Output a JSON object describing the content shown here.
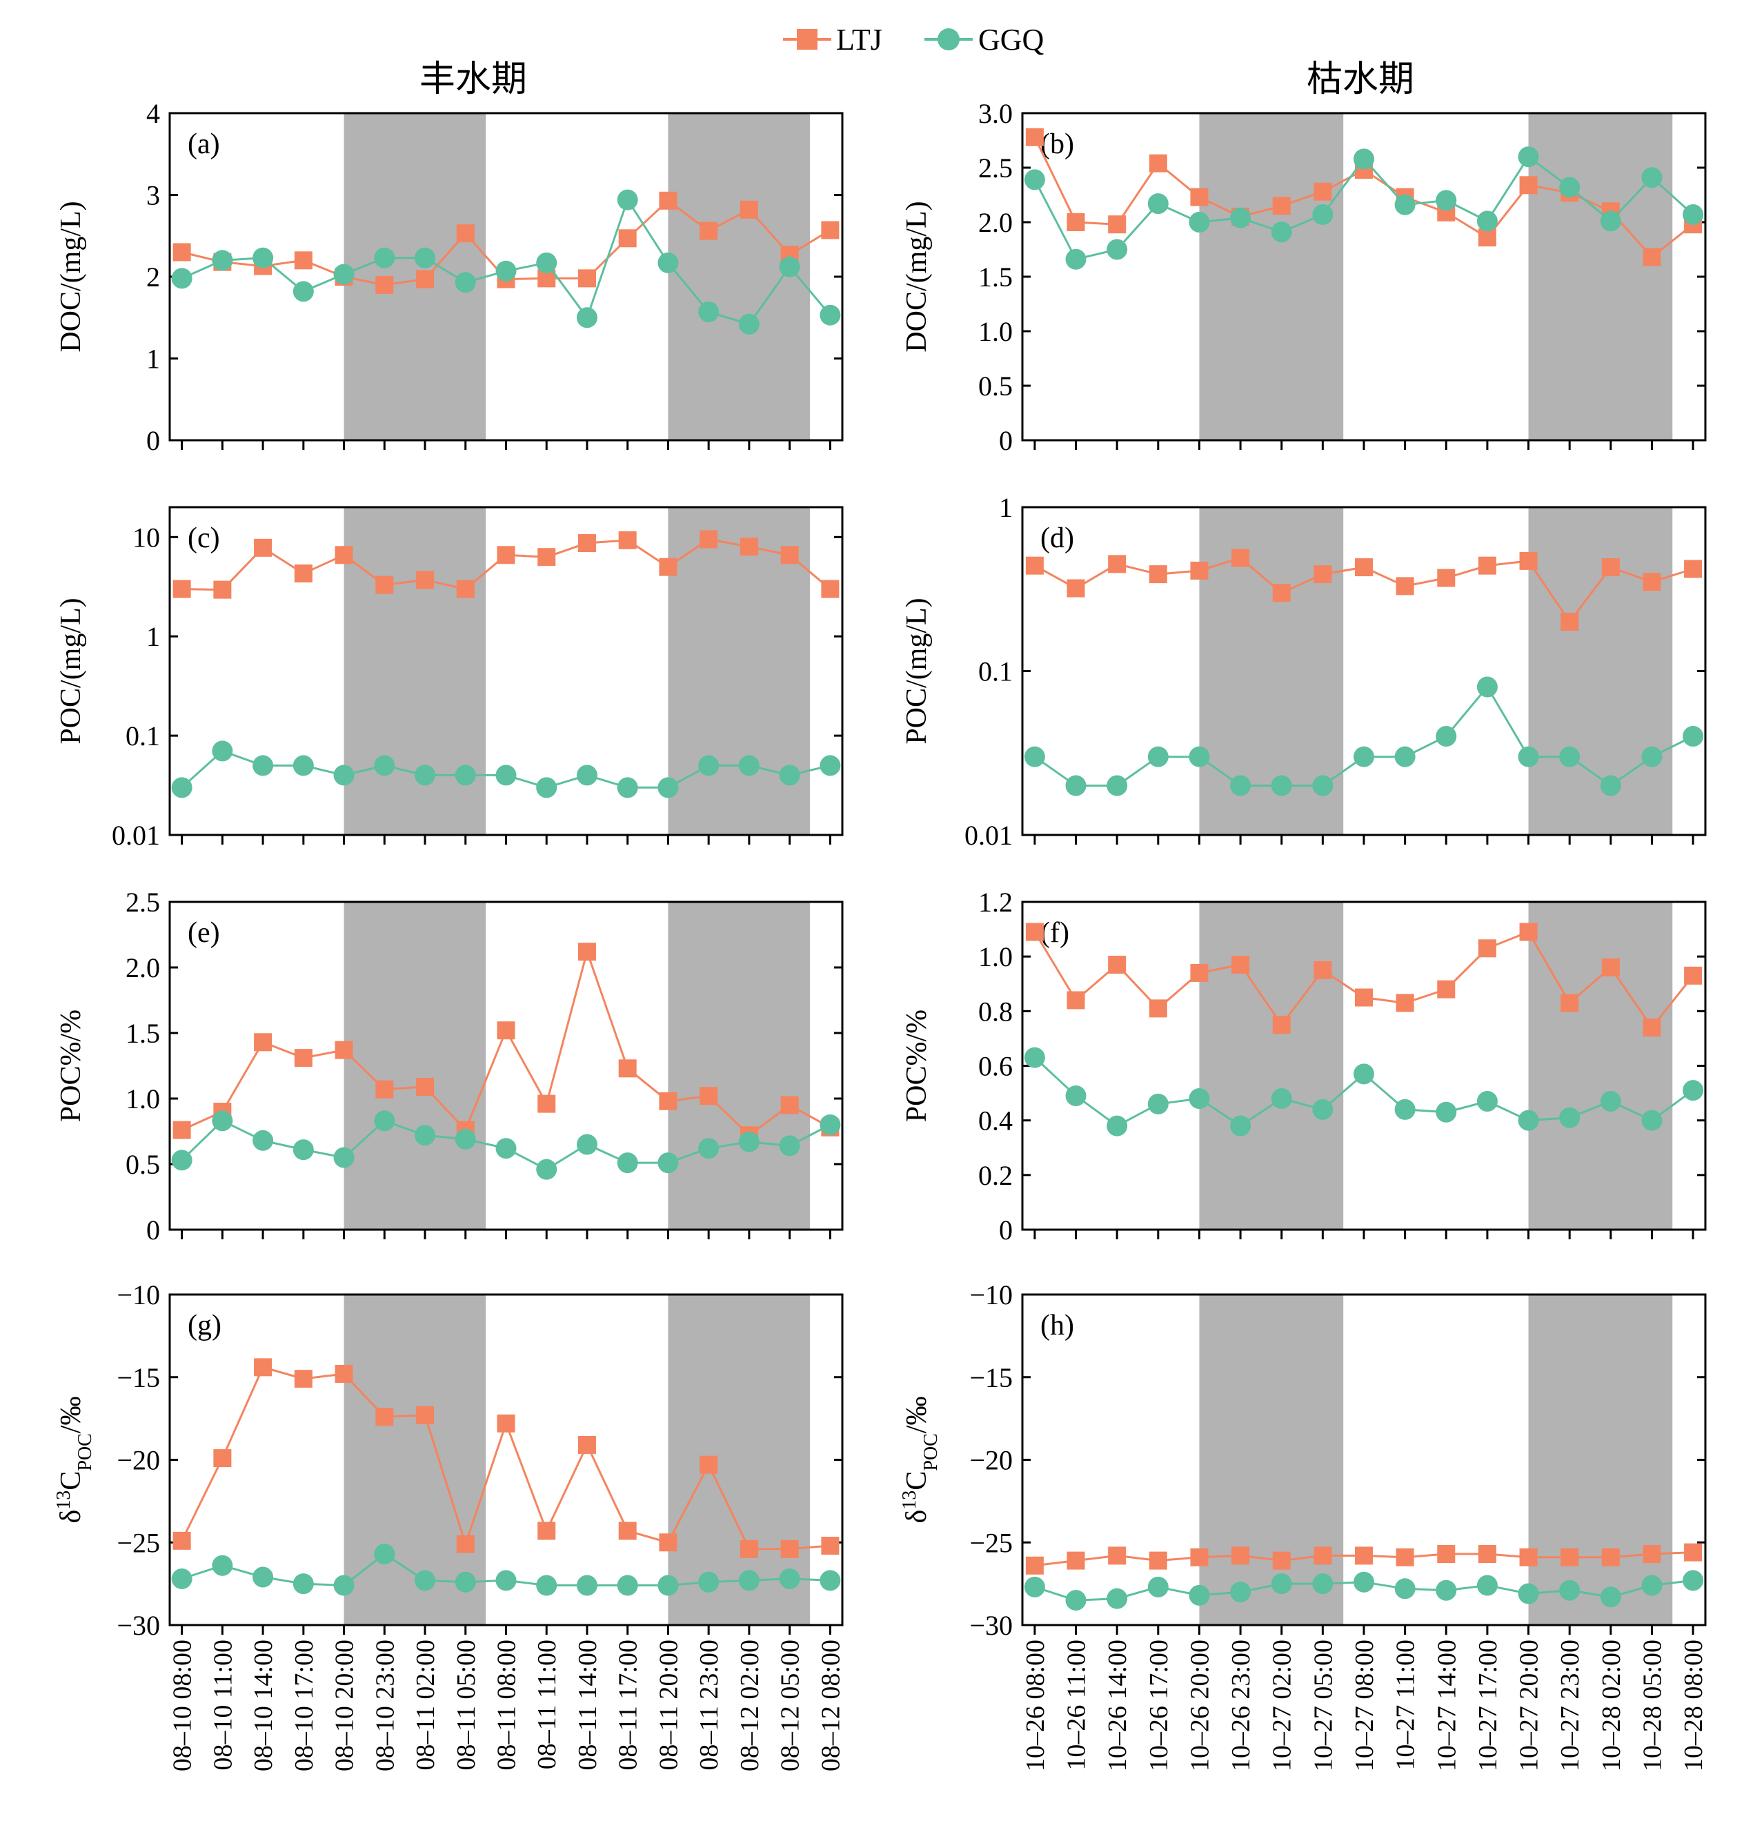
{
  "legend": {
    "ltj_label": "LTJ",
    "ggq_label": "GGQ"
  },
  "column_titles": {
    "left": "丰水期",
    "right": "枯水期"
  },
  "colors": {
    "ltj": "#f4845f",
    "ggq": "#5cbf9f",
    "shade": "#b3b3b3"
  },
  "x_ticks_left": [
    "08–10 08:00",
    "08–10 11:00",
    "08–10 14:00",
    "08–10 17:00",
    "08–10 20:00",
    "08–10 23:00",
    "08–11 02:00",
    "08–11 05:00",
    "08–11 08:00",
    "08–11 11:00",
    "08–11 14:00",
    "08–11 17:00",
    "08–11 20:00",
    "08–11 23:00",
    "08–12 02:00",
    "08–12 05:00",
    "08–12 08:00"
  ],
  "x_ticks_right": [
    "10–26 08:00",
    "10–26 11:00",
    "10–26 14:00",
    "10–26 17:00",
    "10–26 20:00",
    "10–26 23:00",
    "10–27 02:00",
    "10–27 05:00",
    "10–27 08:00",
    "10–27 11:00",
    "10–27 14:00",
    "10–27 17:00",
    "10–27 20:00",
    "10–27 23:00",
    "10–28 02:00",
    "10–28 05:00",
    "10–28 08:00"
  ],
  "chart_data": [
    {
      "id": "a",
      "label": "(a)",
      "type": "line",
      "col": 0,
      "row": 0,
      "ylabel": "DOC/(mg/L)",
      "scale": "linear",
      "ylim": [
        0,
        4
      ],
      "yticks": [
        0,
        1,
        2,
        3,
        4
      ],
      "ytick_labels": [
        "0",
        "1",
        "2",
        "3",
        "4"
      ],
      "shade": [
        [
          4,
          7.5
        ],
        [
          12,
          15.5
        ]
      ],
      "series": [
        {
          "name": "LTJ",
          "values": [
            2.3,
            2.18,
            2.13,
            2.2,
            2.0,
            1.9,
            1.97,
            2.53,
            1.97,
            1.98,
            1.98,
            2.47,
            2.93,
            2.56,
            2.82,
            2.27,
            2.57
          ]
        },
        {
          "name": "GGQ",
          "values": [
            1.98,
            2.2,
            2.23,
            1.82,
            2.03,
            2.23,
            2.23,
            1.93,
            2.07,
            2.17,
            1.5,
            2.94,
            2.17,
            1.57,
            1.42,
            2.12,
            1.53
          ]
        }
      ]
    },
    {
      "id": "b",
      "label": "(b)",
      "type": "line",
      "col": 1,
      "row": 0,
      "ylabel": "DOC/(mg/L)",
      "scale": "linear",
      "ylim": [
        0,
        3
      ],
      "yticks": [
        0,
        0.5,
        1,
        1.5,
        2,
        2.5,
        3
      ],
      "ytick_labels": [
        "0",
        "0.5",
        "1.0",
        "1.5",
        "2.0",
        "2.5",
        "3.0"
      ],
      "shade": [
        [
          4,
          7.5
        ],
        [
          12,
          15.5
        ]
      ],
      "series": [
        {
          "name": "LTJ",
          "values": [
            2.78,
            2.0,
            1.98,
            2.54,
            2.23,
            2.05,
            2.15,
            2.28,
            2.48,
            2.23,
            2.09,
            1.86,
            2.34,
            2.27,
            2.1,
            1.68,
            1.98
          ]
        },
        {
          "name": "GGQ",
          "values": [
            2.39,
            1.66,
            1.75,
            2.17,
            2.0,
            2.04,
            1.91,
            2.07,
            2.58,
            2.16,
            2.2,
            2.01,
            2.6,
            2.32,
            2.01,
            2.41,
            2.07
          ]
        }
      ]
    },
    {
      "id": "c",
      "label": "(c)",
      "type": "line",
      "col": 0,
      "row": 1,
      "ylabel": "POC/(mg/L)",
      "scale": "log",
      "ylim": [
        0.01,
        20
      ],
      "yticks": [
        0.01,
        0.1,
        1,
        10
      ],
      "ytick_labels": [
        "0.01",
        "0.1",
        "1",
        "10"
      ],
      "shade": [
        [
          4,
          7.5
        ],
        [
          12,
          15.5
        ]
      ],
      "series": [
        {
          "name": "LTJ",
          "values": [
            3.0,
            2.95,
            7.8,
            4.3,
            6.6,
            3.3,
            3.7,
            3.0,
            6.6,
            6.3,
            8.7,
            9.3,
            5.0,
            9.5,
            8.0,
            6.6,
            3.0
          ]
        },
        {
          "name": "GGQ",
          "values": [
            0.03,
            0.07,
            0.05,
            0.05,
            0.04,
            0.05,
            0.04,
            0.04,
            0.04,
            0.03,
            0.04,
            0.03,
            0.03,
            0.05,
            0.05,
            0.04,
            0.05
          ]
        }
      ]
    },
    {
      "id": "d",
      "label": "(d)",
      "type": "line",
      "col": 1,
      "row": 1,
      "ylabel": "POC/(mg/L)",
      "scale": "log",
      "ylim": [
        0.01,
        1
      ],
      "yticks": [
        0.01,
        0.1,
        1
      ],
      "ytick_labels": [
        "0.01",
        "0.1",
        "1"
      ],
      "shade": [
        [
          4,
          7.5
        ],
        [
          12,
          15.5
        ]
      ],
      "series": [
        {
          "name": "LTJ",
          "values": [
            0.44,
            0.32,
            0.45,
            0.39,
            0.41,
            0.49,
            0.3,
            0.39,
            0.43,
            0.33,
            0.37,
            0.44,
            0.47,
            0.2,
            0.43,
            0.35,
            0.42
          ]
        },
        {
          "name": "GGQ",
          "values": [
            0.03,
            0.02,
            0.02,
            0.03,
            0.03,
            0.02,
            0.02,
            0.02,
            0.03,
            0.03,
            0.04,
            0.08,
            0.03,
            0.03,
            0.02,
            0.03,
            0.04
          ]
        }
      ]
    },
    {
      "id": "e",
      "label": "(e)",
      "type": "line",
      "col": 0,
      "row": 2,
      "ylabel": "POC%/%",
      "scale": "linear",
      "ylim": [
        0,
        2.5
      ],
      "yticks": [
        0,
        0.5,
        1,
        1.5,
        2,
        2.5
      ],
      "ytick_labels": [
        "0",
        "0.5",
        "1.0",
        "1.5",
        "2.0",
        "2.5"
      ],
      "shade": [
        [
          4,
          7.5
        ],
        [
          12,
          15.5
        ]
      ],
      "series": [
        {
          "name": "LTJ",
          "values": [
            0.76,
            0.9,
            1.43,
            1.31,
            1.37,
            1.07,
            1.09,
            0.76,
            1.52,
            0.96,
            2.12,
            1.23,
            0.98,
            1.02,
            0.72,
            0.95,
            0.78
          ]
        },
        {
          "name": "GGQ",
          "values": [
            0.53,
            0.83,
            0.68,
            0.61,
            0.55,
            0.83,
            0.72,
            0.69,
            0.62,
            0.46,
            0.65,
            0.51,
            0.51,
            0.62,
            0.67,
            0.64,
            0.8
          ]
        }
      ]
    },
    {
      "id": "f",
      "label": "(f)",
      "type": "line",
      "col": 1,
      "row": 2,
      "ylabel": "POC%/%",
      "scale": "linear",
      "ylim": [
        0,
        1.2
      ],
      "yticks": [
        0,
        0.2,
        0.4,
        0.6,
        0.8,
        1.0,
        1.2
      ],
      "ytick_labels": [
        "0",
        "0.2",
        "0.4",
        "0.6",
        "0.8",
        "1.0",
        "1.2"
      ],
      "shade": [
        [
          4,
          7.5
        ],
        [
          12,
          15.5
        ]
      ],
      "series": [
        {
          "name": "LTJ",
          "values": [
            1.09,
            0.84,
            0.97,
            0.81,
            0.94,
            0.97,
            0.75,
            0.95,
            0.85,
            0.83,
            0.88,
            1.03,
            1.09,
            0.83,
            0.96,
            0.74,
            0.93
          ]
        },
        {
          "name": "GGQ",
          "values": [
            0.63,
            0.49,
            0.38,
            0.46,
            0.48,
            0.38,
            0.48,
            0.44,
            0.57,
            0.44,
            0.43,
            0.47,
            0.4,
            0.41,
            0.47,
            0.4,
            0.51
          ]
        }
      ]
    },
    {
      "id": "g",
      "label": "(g)",
      "type": "line",
      "col": 0,
      "row": 3,
      "ylabel": "δ13CPOC/‰",
      "scale": "linear",
      "ylim": [
        -30,
        -10
      ],
      "yticks": [
        -30,
        -25,
        -20,
        -15,
        -10
      ],
      "ytick_labels": [
        "−30",
        "−25",
        "−20",
        "−15",
        "−10"
      ],
      "shade": [
        [
          4,
          7.5
        ],
        [
          12,
          15.5
        ]
      ],
      "series": [
        {
          "name": "LTJ",
          "values": [
            -24.9,
            -19.9,
            -14.4,
            -15.1,
            -14.8,
            -17.4,
            -17.3,
            -25.1,
            -17.8,
            -24.3,
            -19.1,
            -24.3,
            -25.0,
            -20.3,
            -25.4,
            -25.4,
            -25.2
          ]
        },
        {
          "name": "GGQ",
          "values": [
            -27.2,
            -26.4,
            -27.1,
            -27.5,
            -27.6,
            -25.7,
            -27.3,
            -27.4,
            -27.3,
            -27.6,
            -27.6,
            -27.6,
            -27.6,
            -27.4,
            -27.3,
            -27.2,
            -27.3
          ]
        }
      ]
    },
    {
      "id": "h",
      "label": "(h)",
      "type": "line",
      "col": 1,
      "row": 3,
      "ylabel": "δ13CPOC/‰",
      "scale": "linear",
      "ylim": [
        -30,
        -10
      ],
      "yticks": [
        -30,
        -25,
        -20,
        -15,
        -10
      ],
      "ytick_labels": [
        "−30",
        "−25",
        "−20",
        "−15",
        "−10"
      ],
      "shade": [
        [
          4,
          7.5
        ],
        [
          12,
          15.5
        ]
      ],
      "series": [
        {
          "name": "LTJ",
          "values": [
            -26.4,
            -26.1,
            -25.8,
            -26.1,
            -25.9,
            -25.8,
            -26.1,
            -25.8,
            -25.8,
            -25.9,
            -25.7,
            -25.7,
            -25.9,
            -25.9,
            -25.9,
            -25.7,
            -25.6
          ]
        },
        {
          "name": "GGQ",
          "values": [
            -27.7,
            -28.5,
            -28.4,
            -27.7,
            -28.2,
            -28.0,
            -27.5,
            -27.5,
            -27.4,
            -27.8,
            -27.9,
            -27.6,
            -28.1,
            -27.9,
            -28.3,
            -27.6,
            -27.3
          ]
        }
      ]
    }
  ]
}
